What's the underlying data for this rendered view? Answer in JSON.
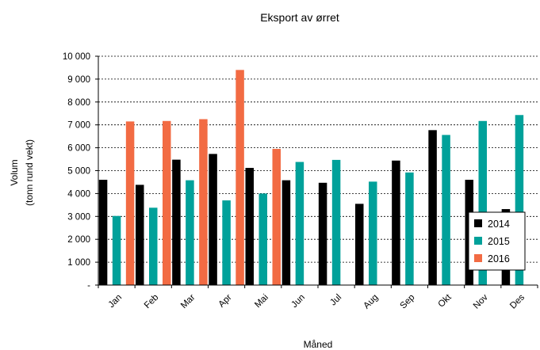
{
  "chart_data": {
    "type": "bar",
    "title": "Eksport av ørret",
    "xlabel": "Måned",
    "ylabel": [
      "Volum",
      "(tonn rund vekt)"
    ],
    "categories": [
      "Jan",
      "Feb",
      "Mar",
      "Apr",
      "Mai",
      "Jun",
      "Jul",
      "Aug",
      "Sep",
      "Okt",
      "Nov",
      "Des"
    ],
    "ylim": [
      0,
      10000
    ],
    "yticks": [
      0,
      1000,
      2000,
      3000,
      4000,
      5000,
      6000,
      7000,
      8000,
      9000,
      10000
    ],
    "ytick_labels": [
      "-",
      "1 000",
      "2 000",
      "3 000",
      "4 000",
      "5 000",
      "6 000",
      "7 000",
      "8 000",
      "9 000",
      "10 000"
    ],
    "grid": "horizontal dashed",
    "legend_position": "bottom-right",
    "series": [
      {
        "name": "2014",
        "color": "#000000",
        "values": [
          4600,
          4380,
          5480,
          5730,
          5120,
          4580,
          4470,
          3550,
          5440,
          6770,
          4600,
          3320
        ]
      },
      {
        "name": "2015",
        "color": "#00A19A",
        "values": [
          3020,
          3380,
          4580,
          3700,
          4000,
          5380,
          5470,
          4520,
          4920,
          6560,
          7170,
          7430
        ]
      },
      {
        "name": "2016",
        "color": "#F26B43",
        "values": [
          7150,
          7170,
          7250,
          9400,
          5950,
          null,
          null,
          null,
          null,
          null,
          null,
          null
        ]
      }
    ]
  }
}
